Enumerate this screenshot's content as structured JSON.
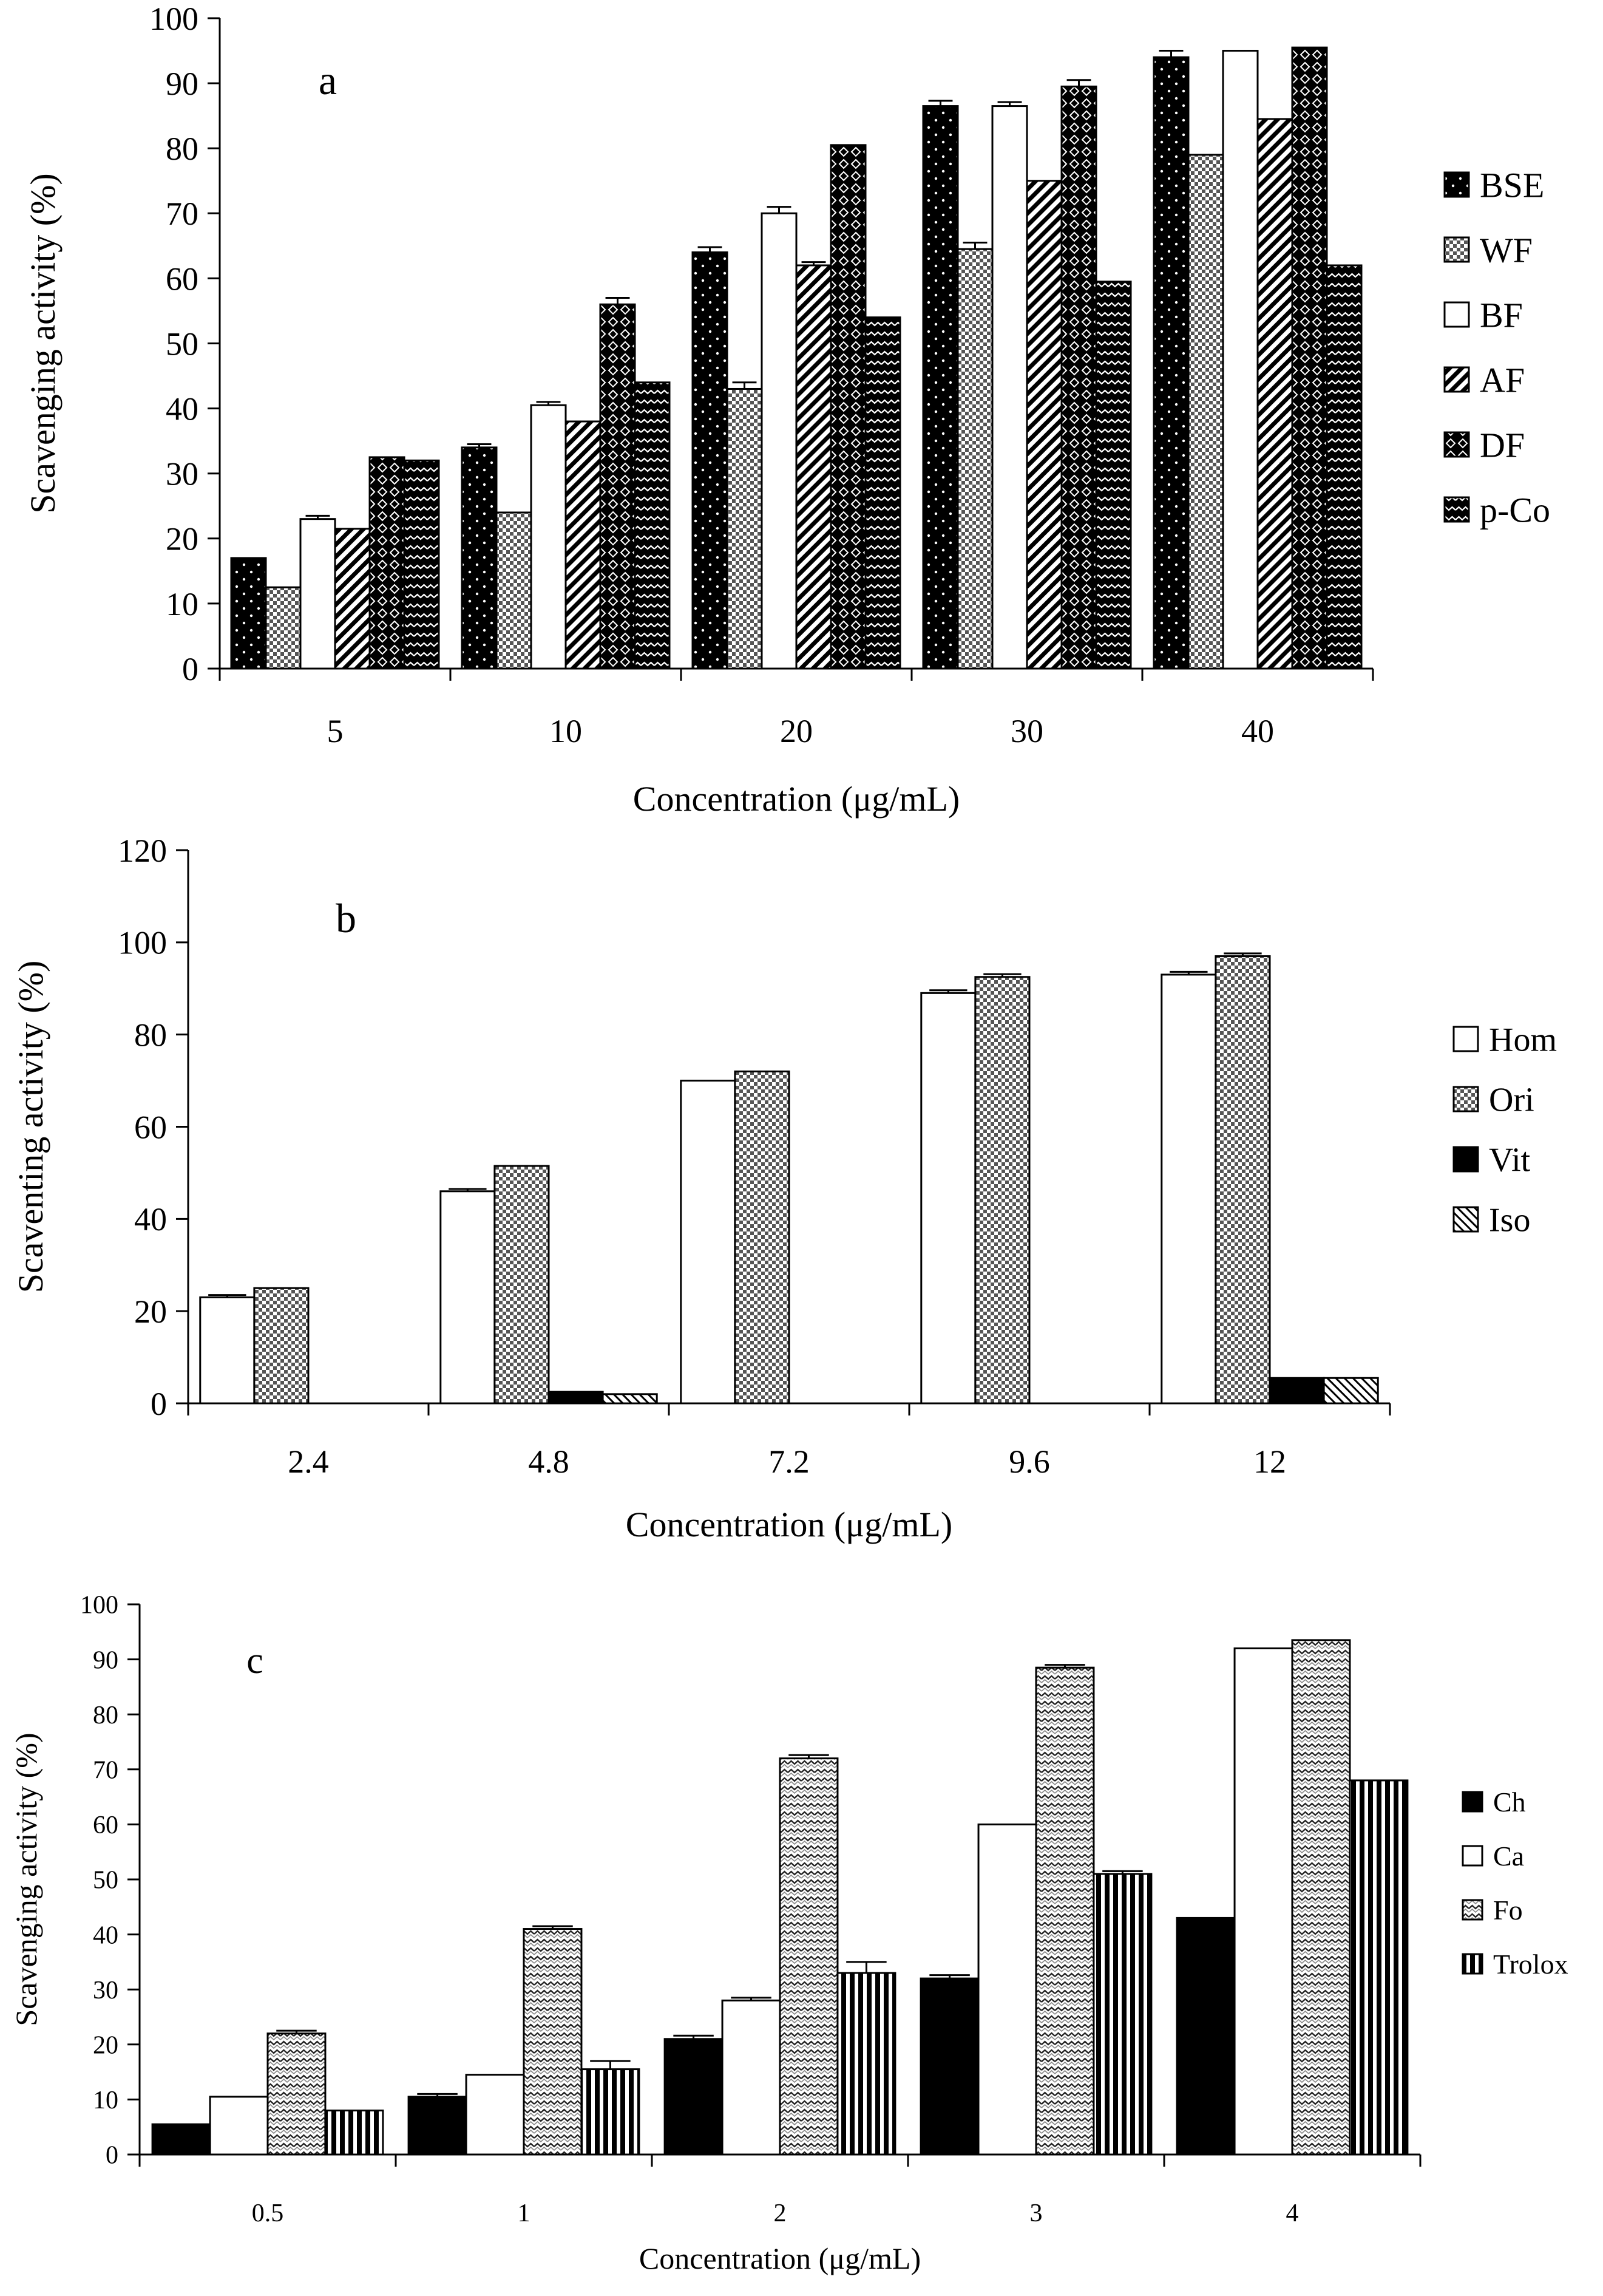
{
  "chart_data": [
    {
      "type": "bar",
      "panel_label": "a",
      "title": "",
      "xlabel": "Concentration (μg/mL)",
      "ylabel": "Scavenging activity (%)",
      "ylim": [
        0,
        100
      ],
      "yticks": [
        0,
        10,
        20,
        30,
        40,
        50,
        60,
        70,
        80,
        90,
        100
      ],
      "categories": [
        "5",
        "10",
        "20",
        "30",
        "40"
      ],
      "legend_position": "right",
      "series": [
        {
          "name": "BSE",
          "pattern": "dots-black",
          "values": [
            17,
            34,
            64,
            86.5,
            94
          ],
          "errors": [
            0,
            0.5,
            0.8,
            0.8,
            1.0
          ]
        },
        {
          "name": "WF",
          "pattern": "checker",
          "values": [
            12.5,
            24,
            43,
            64.5,
            79
          ],
          "errors": [
            0,
            0,
            1.0,
            1.0,
            0
          ]
        },
        {
          "name": "BF",
          "pattern": "white",
          "values": [
            23,
            40.5,
            70,
            86.5,
            95
          ],
          "errors": [
            0.5,
            0.5,
            1.0,
            0.6,
            0
          ]
        },
        {
          "name": "AF",
          "pattern": "diag-stripes",
          "values": [
            21.5,
            38,
            62,
            75,
            84.5
          ],
          "errors": [
            0,
            0,
            0.5,
            0,
            0
          ]
        },
        {
          "name": "DF",
          "pattern": "diamond",
          "values": [
            32.5,
            56,
            80.5,
            89.5,
            95.5
          ],
          "errors": [
            0,
            1.0,
            0,
            1.0,
            0
          ]
        },
        {
          "name": "p-Co",
          "pattern": "zigzag-dark",
          "values": [
            32,
            44,
            54,
            59.5,
            62
          ],
          "errors": [
            0,
            0,
            0,
            0,
            0
          ]
        }
      ]
    },
    {
      "type": "bar",
      "panel_label": "b",
      "title": "",
      "xlabel": "Concentration (μg/mL)",
      "ylabel": "Scaventing activity (%)",
      "ylim": [
        0,
        120
      ],
      "yticks": [
        0,
        20,
        40,
        60,
        80,
        100,
        120
      ],
      "categories": [
        "2.4",
        "4.8",
        "7.2",
        "9.6",
        "12"
      ],
      "legend_position": "right",
      "series": [
        {
          "name": "Hom",
          "pattern": "white",
          "values": [
            23,
            46,
            70,
            89,
            93
          ],
          "errors": [
            0.5,
            0.5,
            0,
            0.6,
            0.6
          ]
        },
        {
          "name": "Ori",
          "pattern": "checker",
          "values": [
            25,
            51.5,
            72,
            92.5,
            97
          ],
          "errors": [
            0,
            0,
            0,
            0.6,
            0.6
          ]
        },
        {
          "name": "Vit",
          "pattern": "black",
          "values": [
            0,
            2.5,
            0,
            0,
            5.5
          ],
          "errors": [
            0,
            0,
            0,
            0,
            0
          ]
        },
        {
          "name": "Iso",
          "pattern": "hatch-light",
          "values": [
            0,
            2,
            0,
            0,
            5.5
          ],
          "errors": [
            0,
            0,
            0,
            0,
            0
          ]
        }
      ]
    },
    {
      "type": "bar",
      "panel_label": "c",
      "title": "",
      "xlabel": "Concentration (μg/mL)",
      "ylabel": "Scavenging activity (%)",
      "ylim": [
        0,
        100
      ],
      "yticks": [
        0,
        10,
        20,
        30,
        40,
        50,
        60,
        70,
        80,
        90,
        100
      ],
      "categories": [
        "0.5",
        "1",
        "2",
        "3",
        "4"
      ],
      "legend_position": "right",
      "series": [
        {
          "name": "Ch",
          "pattern": "black",
          "values": [
            5.5,
            10.5,
            21,
            32,
            43
          ],
          "errors": [
            0,
            0.5,
            0.6,
            0.6,
            0
          ]
        },
        {
          "name": "Ca",
          "pattern": "white",
          "values": [
            10.5,
            14.5,
            28,
            60,
            92
          ],
          "errors": [
            0,
            0,
            0.5,
            0,
            0
          ]
        },
        {
          "name": "Fo",
          "pattern": "zigzag-light",
          "values": [
            22,
            41,
            72,
            88.5,
            93.5
          ],
          "errors": [
            0.5,
            0.5,
            0.6,
            0.5,
            0
          ]
        },
        {
          "name": "Trolox",
          "pattern": "vstripes",
          "values": [
            8,
            15.5,
            33,
            51,
            68
          ],
          "errors": [
            0,
            1.5,
            2.0,
            0.5,
            0
          ]
        }
      ]
    }
  ]
}
